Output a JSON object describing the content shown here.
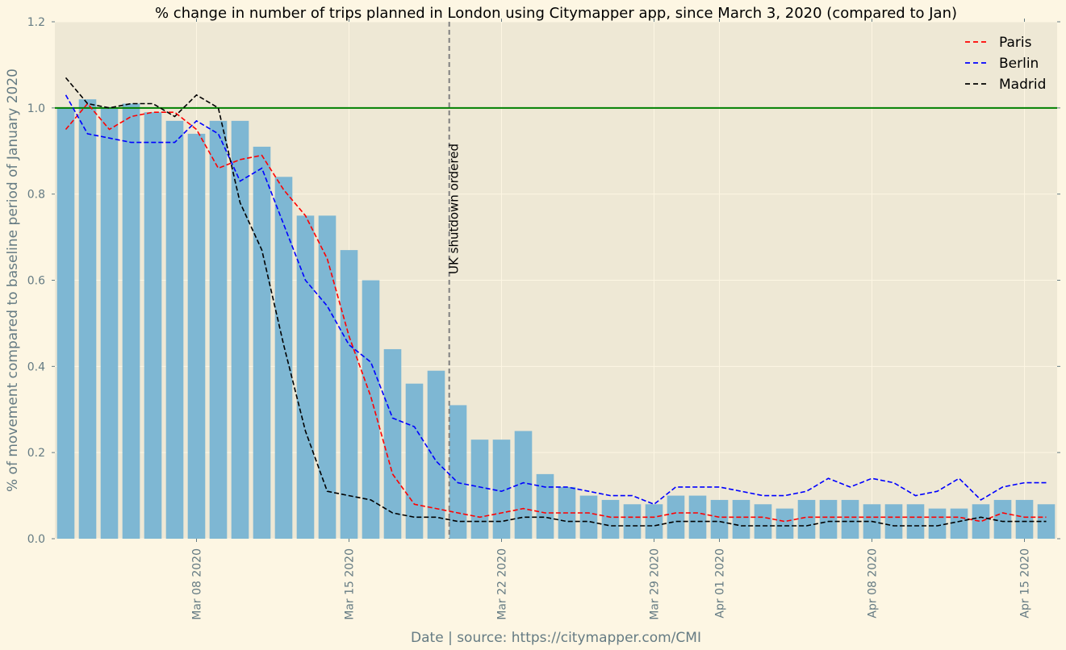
{
  "chart_data": {
    "type": "bar",
    "title": "% change in number of trips planned in London using Citymapper app, since March 3, 2020 (compared to Jan)",
    "xlabel": "Date | source: https://citymapper.com/CMI",
    "ylabel": "% of movement compared to baseline period of January 2020",
    "ylim": [
      0,
      1.2
    ],
    "yticks": [
      "0.0",
      "0.2",
      "0.4",
      "0.6",
      "0.8",
      "1.0",
      "1.2"
    ],
    "xticks": [
      {
        "label": "Mar 08 2020",
        "date": "2020-03-08"
      },
      {
        "label": "Mar 15 2020",
        "date": "2020-03-15"
      },
      {
        "label": "Mar 22 2020",
        "date": "2020-03-22"
      },
      {
        "label": "Mar 29 2020",
        "date": "2020-03-29"
      },
      {
        "label": "Apr 01 2020",
        "date": "2020-04-01"
      },
      {
        "label": "Apr 08 2020",
        "date": "2020-04-08"
      },
      {
        "label": "Apr 15 2020",
        "date": "2020-04-15"
      }
    ],
    "dates": [
      "2020-03-02",
      "2020-03-03",
      "2020-03-04",
      "2020-03-05",
      "2020-03-06",
      "2020-03-07",
      "2020-03-08",
      "2020-03-09",
      "2020-03-10",
      "2020-03-11",
      "2020-03-12",
      "2020-03-13",
      "2020-03-14",
      "2020-03-15",
      "2020-03-16",
      "2020-03-17",
      "2020-03-18",
      "2020-03-19",
      "2020-03-20",
      "2020-03-21",
      "2020-03-22",
      "2020-03-23",
      "2020-03-24",
      "2020-03-25",
      "2020-03-26",
      "2020-03-27",
      "2020-03-28",
      "2020-03-29",
      "2020-03-30",
      "2020-03-31",
      "2020-04-01",
      "2020-04-02",
      "2020-04-03",
      "2020-04-04",
      "2020-04-05",
      "2020-04-06",
      "2020-04-07",
      "2020-04-08",
      "2020-04-09",
      "2020-04-10",
      "2020-04-11",
      "2020-04-12",
      "2020-04-13",
      "2020-04-14",
      "2020-04-15",
      "2020-04-16"
    ],
    "london_bars": [
      1.0,
      1.02,
      1.0,
      1.01,
      0.99,
      0.97,
      0.94,
      0.97,
      0.97,
      0.91,
      0.84,
      0.75,
      0.75,
      0.67,
      0.6,
      0.44,
      0.36,
      0.39,
      0.31,
      0.23,
      0.23,
      0.25,
      0.15,
      0.12,
      0.1,
      0.09,
      0.08,
      0.08,
      0.1,
      0.1,
      0.09,
      0.09,
      0.08,
      0.07,
      0.09,
      0.09,
      0.09,
      0.08,
      0.08,
      0.08,
      0.07,
      0.07,
      0.08,
      0.09,
      0.09,
      0.08
    ],
    "bar_color": "#7eb7d3",
    "series": [
      {
        "name": "Paris",
        "color": "#ff0000",
        "style": "dashed",
        "values": [
          0.95,
          1.01,
          0.95,
          0.98,
          0.99,
          0.99,
          0.95,
          0.86,
          0.88,
          0.89,
          0.81,
          0.75,
          0.65,
          0.47,
          0.33,
          0.15,
          0.08,
          0.07,
          0.06,
          0.05,
          0.06,
          0.07,
          0.06,
          0.06,
          0.06,
          0.05,
          0.05,
          0.05,
          0.06,
          0.06,
          0.05,
          0.05,
          0.05,
          0.04,
          0.05,
          0.05,
          0.05,
          0.05,
          0.05,
          0.05,
          0.05,
          0.05,
          0.04,
          0.06,
          0.05,
          0.05
        ]
      },
      {
        "name": "Berlin",
        "color": "#0000ff",
        "style": "dashed",
        "values": [
          1.03,
          0.94,
          0.93,
          0.92,
          0.92,
          0.92,
          0.97,
          0.94,
          0.83,
          0.86,
          0.73,
          0.6,
          0.54,
          0.45,
          0.41,
          0.28,
          0.26,
          0.18,
          0.13,
          0.12,
          0.11,
          0.13,
          0.12,
          0.12,
          0.11,
          0.1,
          0.1,
          0.08,
          0.12,
          0.12,
          0.12,
          0.11,
          0.1,
          0.1,
          0.11,
          0.14,
          0.12,
          0.14,
          0.13,
          0.1,
          0.11,
          0.14,
          0.09,
          0.12,
          0.13,
          0.13
        ]
      },
      {
        "name": "Madrid",
        "color": "#000000",
        "style": "dashed",
        "values": [
          1.07,
          1.01,
          1.0,
          1.01,
          1.01,
          0.98,
          1.03,
          1.0,
          0.78,
          0.67,
          0.45,
          0.25,
          0.11,
          0.1,
          0.09,
          0.06,
          0.05,
          0.05,
          0.04,
          0.04,
          0.04,
          0.05,
          0.05,
          0.04,
          0.04,
          0.03,
          0.03,
          0.03,
          0.04,
          0.04,
          0.04,
          0.03,
          0.03,
          0.03,
          0.03,
          0.04,
          0.04,
          0.04,
          0.03,
          0.03,
          0.03,
          0.04,
          0.05,
          0.04,
          0.04,
          0.04
        ]
      }
    ],
    "baseline": {
      "value": 1.0,
      "color": "#008000"
    },
    "annotation": {
      "text": "UK shutdown ordered",
      "date": "2020-03-20",
      "offset_days": -0.4
    },
    "grid": true,
    "legend_position": "top-right"
  }
}
